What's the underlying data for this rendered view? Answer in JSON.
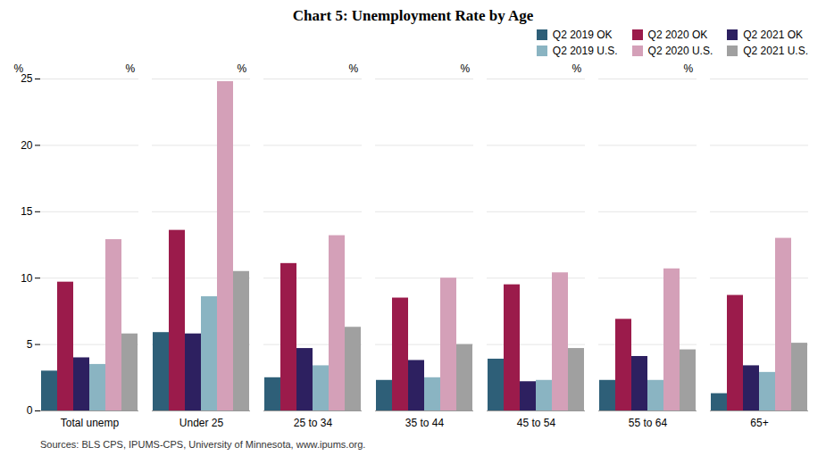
{
  "chart_data": {
    "type": "bar",
    "title": "Chart 5: Unemployment Rate by Age",
    "ylabel": "%",
    "source": "Sources: BLS CPS, IPUMS-CPS, University of Minnesota, www.ipums.org.",
    "categories": [
      "Total unemp",
      "Under 25",
      "25 to 34",
      "35 to 44",
      "45 to 54",
      "55 to 64",
      "65+"
    ],
    "series": [
      {
        "name": "Q2 2019 OK",
        "color": "#2e5f78",
        "values": [
          3.0,
          5.9,
          2.5,
          2.3,
          3.9,
          2.3,
          1.3
        ]
      },
      {
        "name": "Q2 2020 OK",
        "color": "#9b1b4b",
        "values": [
          9.7,
          13.6,
          11.1,
          8.5,
          9.5,
          6.9,
          8.7
        ]
      },
      {
        "name": "Q2 2021 OK",
        "color": "#2d2060",
        "values": [
          4.0,
          5.8,
          4.7,
          3.8,
          2.2,
          4.1,
          3.4
        ]
      },
      {
        "name": "Q2 2019 U.S.",
        "color": "#8ab4c2",
        "values": [
          3.5,
          8.6,
          3.4,
          2.5,
          2.3,
          2.3,
          2.9
        ]
      },
      {
        "name": "Q2 2020 U.S.",
        "color": "#d4a0b8",
        "values": [
          12.9,
          24.8,
          13.2,
          10.0,
          10.4,
          10.7,
          13.0
        ]
      },
      {
        "name": "Q2 2021 U.S.",
        "color": "#a0a0a0",
        "values": [
          5.8,
          10.5,
          6.3,
          5.0,
          4.7,
          4.6,
          5.1
        ]
      }
    ],
    "ylim": [
      0,
      25
    ],
    "yticks": [
      0,
      5,
      10,
      15,
      20,
      25
    ],
    "grid": true,
    "legend": "upper right"
  }
}
